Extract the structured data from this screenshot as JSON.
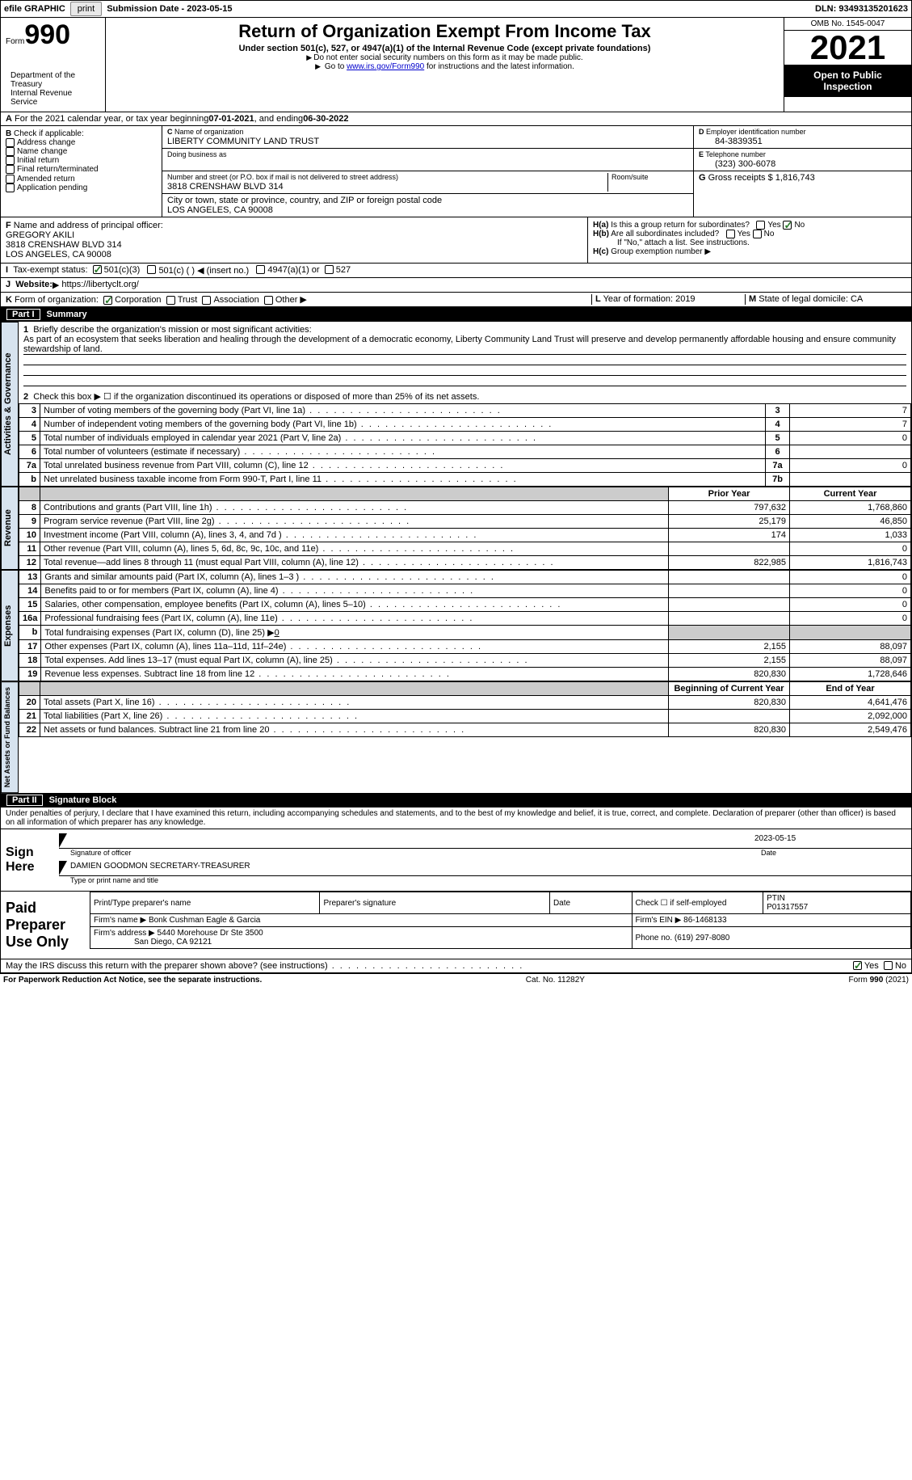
{
  "topbar": {
    "efile": "efile GRAPHIC",
    "print": "print",
    "sub_label": "Submission Date - ",
    "sub_date": "2023-05-15",
    "dln_label": "DLN: ",
    "dln": "93493135201623"
  },
  "header": {
    "form_word": "Form",
    "form_num": "990",
    "title": "Return of Organization Exempt From Income Tax",
    "subtitle": "Under section 501(c), 527, or 4947(a)(1) of the Internal Revenue Code (except private foundations)",
    "note1": "Do not enter social security numbers on this form as it may be made public.",
    "note2_pre": "Go to ",
    "note2_link": "www.irs.gov/Form990",
    "note2_post": " for instructions and the latest information.",
    "dept": "Department of the Treasury\nInternal Revenue Service",
    "omb": "OMB No. 1545-0047",
    "year": "2021",
    "oti1": "Open to Public",
    "oti2": "Inspection"
  },
  "A": {
    "text_pre": "For the 2021 calendar year, or tax year beginning ",
    "begin": "07-01-2021",
    "mid": " , and ending ",
    "end": "06-30-2022"
  },
  "B": {
    "label": "Check if applicable:",
    "items": [
      "Address change",
      "Name change",
      "Initial return",
      "Final return/terminated",
      "Amended return",
      "Application pending"
    ]
  },
  "C": {
    "name_lab": "Name of organization",
    "name": "LIBERTY COMMUNITY LAND TRUST",
    "dba_lab": "Doing business as",
    "dba": "",
    "addr_lab": "Number and street (or P.O. box if mail is not delivered to street address)",
    "room_lab": "Room/suite",
    "addr": "3818 CRENSHAW BLVD 314",
    "city_lab": "City or town, state or province, country, and ZIP or foreign postal code",
    "city": "LOS ANGELES, CA  90008"
  },
  "D": {
    "lab": "Employer identification number",
    "val": "84-3839351"
  },
  "E": {
    "lab": "Telephone number",
    "val": "(323) 300-6078"
  },
  "G": {
    "lab": "Gross receipts $",
    "val": "1,816,743"
  },
  "F": {
    "lab": "Name and address of principal officer:",
    "name": "GREGORY AKILI",
    "addr1": "3818 CRENSHAW BLVD 314",
    "addr2": "LOS ANGELES, CA  90008"
  },
  "H": {
    "a_lab": "Is this a group return for subordinates?",
    "b_lab": "Are all subordinates included?",
    "b_note": "If \"No,\" attach a list. See instructions.",
    "c_lab": "Group exemption number",
    "yes": "Yes",
    "no": "No"
  },
  "I": {
    "lab": "Tax-exempt status:",
    "opt1": "501(c)(3)",
    "opt2": "501(c) (   ) ◀ (insert no.)",
    "opt3": "4947(a)(1) or",
    "opt4": "527"
  },
  "J": {
    "lab": "Website:",
    "val": "https://libertyclt.org/"
  },
  "K": {
    "lab": "Form of organization:",
    "opts": [
      "Corporation",
      "Trust",
      "Association",
      "Other"
    ]
  },
  "L": {
    "lab": "Year of formation:",
    "val": "2019"
  },
  "M": {
    "lab": "State of legal domicile:",
    "val": "CA"
  },
  "partI": {
    "label": "Part I",
    "title": "Summary",
    "vtab_ag": "Activities & Governance",
    "vtab_rev": "Revenue",
    "vtab_exp": "Expenses",
    "vtab_na": "Net Assets or Fund Balances",
    "line1_lab": "Briefly describe the organization's mission or most significant activities:",
    "line1_val": "As part of an ecosystem that seeks liberation and healing through the development of a democratic economy, Liberty Community Land Trust will preserve and develop permanently affordable housing and ensure community stewardship of land.",
    "line2": "Check this box ▶ ☐  if the organization discontinued its operations or disposed of more than 25% of its net assets.",
    "lines_ag": [
      {
        "n": "3",
        "d": "Number of voting members of the governing body (Part VI, line 1a)",
        "b": "3",
        "v": "7"
      },
      {
        "n": "4",
        "d": "Number of independent voting members of the governing body (Part VI, line 1b)",
        "b": "4",
        "v": "7"
      },
      {
        "n": "5",
        "d": "Total number of individuals employed in calendar year 2021 (Part V, line 2a)",
        "b": "5",
        "v": "0"
      },
      {
        "n": "6",
        "d": "Total number of volunteers (estimate if necessary)",
        "b": "6",
        "v": ""
      },
      {
        "n": "7a",
        "d": "Total unrelated business revenue from Part VIII, column (C), line 12",
        "b": "7a",
        "v": "0"
      },
      {
        "n": "b",
        "d": "Net unrelated business taxable income from Form 990-T, Part I, line 11",
        "b": "7b",
        "v": ""
      }
    ],
    "col_prior": "Prior Year",
    "col_curr": "Current Year",
    "lines_rev": [
      {
        "n": "8",
        "d": "Contributions and grants (Part VIII, line 1h)",
        "p": "797,632",
        "c": "1,768,860"
      },
      {
        "n": "9",
        "d": "Program service revenue (Part VIII, line 2g)",
        "p": "25,179",
        "c": "46,850"
      },
      {
        "n": "10",
        "d": "Investment income (Part VIII, column (A), lines 3, 4, and 7d )",
        "p": "174",
        "c": "1,033"
      },
      {
        "n": "11",
        "d": "Other revenue (Part VIII, column (A), lines 5, 6d, 8c, 9c, 10c, and 11e)",
        "p": "",
        "c": "0"
      },
      {
        "n": "12",
        "d": "Total revenue—add lines 8 through 11 (must equal Part VIII, column (A), line 12)",
        "p": "822,985",
        "c": "1,816,743"
      }
    ],
    "lines_exp": [
      {
        "n": "13",
        "d": "Grants and similar amounts paid (Part IX, column (A), lines 1–3 )",
        "p": "",
        "c": "0"
      },
      {
        "n": "14",
        "d": "Benefits paid to or for members (Part IX, column (A), line 4)",
        "p": "",
        "c": "0"
      },
      {
        "n": "15",
        "d": "Salaries, other compensation, employee benefits (Part IX, column (A), lines 5–10)",
        "p": "",
        "c": "0"
      },
      {
        "n": "16a",
        "d": "Professional fundraising fees (Part IX, column (A), line 11e)",
        "p": "",
        "c": "0"
      },
      {
        "n": "b",
        "d": "Total fundraising expenses (Part IX, column (D), line 25) ▶",
        "p": "shade",
        "c": "shade",
        "inline": "0"
      },
      {
        "n": "17",
        "d": "Other expenses (Part IX, column (A), lines 11a–11d, 11f–24e)",
        "p": "2,155",
        "c": "88,097"
      },
      {
        "n": "18",
        "d": "Total expenses. Add lines 13–17 (must equal Part IX, column (A), line 25)",
        "p": "2,155",
        "c": "88,097"
      },
      {
        "n": "19",
        "d": "Revenue less expenses. Subtract line 18 from line 12",
        "p": "820,830",
        "c": "1,728,646"
      }
    ],
    "col_begin": "Beginning of Current Year",
    "col_end": "End of Year",
    "lines_na": [
      {
        "n": "20",
        "d": "Total assets (Part X, line 16)",
        "p": "820,830",
        "c": "4,641,476"
      },
      {
        "n": "21",
        "d": "Total liabilities (Part X, line 26)",
        "p": "",
        "c": "2,092,000"
      },
      {
        "n": "22",
        "d": "Net assets or fund balances. Subtract line 21 from line 20",
        "p": "820,830",
        "c": "2,549,476"
      }
    ]
  },
  "partII": {
    "label": "Part II",
    "title": "Signature Block",
    "decl": "Under penalties of perjury, I declare that I have examined this return, including accompanying schedules and statements, and to the best of my knowledge and belief, it is true, correct, and complete. Declaration of preparer (other than officer) is based on all information of which preparer has any knowledge.",
    "sign_here": "Sign Here",
    "sig_of_officer": "Signature of officer",
    "sig_date_lab": "Date",
    "sig_date": "2023-05-15",
    "officer_name": "DAMIEN GOODMON  SECRETARY-TREASURER",
    "type_name_lab": "Type or print name and title",
    "paid_prep": "Paid Preparer Use Only",
    "pp_name_lab": "Print/Type preparer's name",
    "pp_sig_lab": "Preparer's signature",
    "pp_date_lab": "Date",
    "pp_check_lab": "Check ☐ if self-employed",
    "pp_ptin_lab": "PTIN",
    "pp_ptin": "P01317557",
    "firm_name_lab": "Firm's name ▶",
    "firm_name": "Bonk Cushman Eagle & Garcia",
    "firm_ein_lab": "Firm's EIN ▶",
    "firm_ein": "86-1468133",
    "firm_addr_lab": "Firm's address ▶",
    "firm_addr1": "5440 Morehouse Dr Ste 3500",
    "firm_addr2": "San Diego, CA  92121",
    "firm_phone_lab": "Phone no.",
    "firm_phone": "(619) 297-8080",
    "may_irs": "May the IRS discuss this return with the preparer shown above? (see instructions)",
    "yes": "Yes",
    "no": "No"
  },
  "footer": {
    "pra": "For Paperwork Reduction Act Notice, see the separate instructions.",
    "cat": "Cat. No. 11282Y",
    "form": "Form 990 (2021)"
  },
  "colors": {
    "vtab_bg": "#d7e3ef",
    "check_green": "#2a7a2a",
    "link": "#0000cc"
  }
}
